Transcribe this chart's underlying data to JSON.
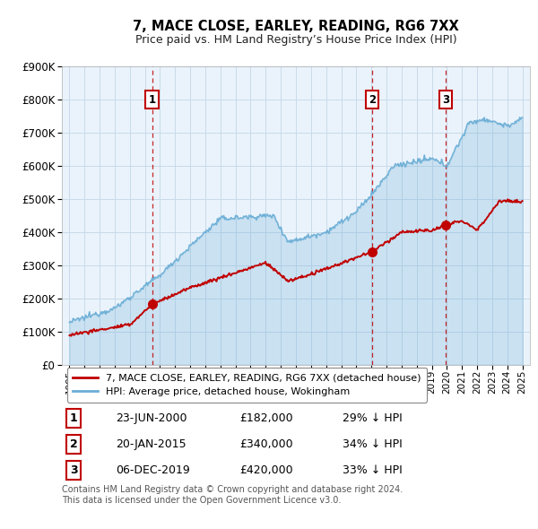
{
  "title": "7, MACE CLOSE, EARLEY, READING, RG6 7XX",
  "subtitle": "Price paid vs. HM Land Registry’s House Price Index (HPI)",
  "ylim": [
    0,
    900000
  ],
  "yticks": [
    0,
    100000,
    200000,
    300000,
    400000,
    500000,
    600000,
    700000,
    800000,
    900000
  ],
  "ytick_labels": [
    "£0",
    "£100K",
    "£200K",
    "£300K",
    "£400K",
    "£500K",
    "£600K",
    "£700K",
    "£800K",
    "£900K"
  ],
  "xlim_start": 1994.5,
  "xlim_end": 2025.5,
  "hpi_color": "#6baed6",
  "hpi_fill_color": "#d6e8f5",
  "price_color": "#c00000",
  "transactions": [
    {
      "num": 1,
      "date": "23-JUN-2000",
      "price": 182000,
      "pct": "29% ↓ HPI",
      "year": 2000.47
    },
    {
      "num": 2,
      "date": "20-JAN-2015",
      "price": 340000,
      "pct": "34% ↓ HPI",
      "year": 2015.05
    },
    {
      "num": 3,
      "date": "06-DEC-2019",
      "price": 420000,
      "pct": "33% ↓ HPI",
      "year": 2019.92
    }
  ],
  "legend_label_red": "7, MACE CLOSE, EARLEY, READING, RG6 7XX (detached house)",
  "legend_label_blue": "HPI: Average price, detached house, Wokingham",
  "footer": "Contains HM Land Registry data © Crown copyright and database right 2024.\nThis data is licensed under the Open Government Licence v3.0.",
  "background_color": "#ffffff",
  "chart_bg_color": "#eaf3fb",
  "grid_color": "#c8daea"
}
